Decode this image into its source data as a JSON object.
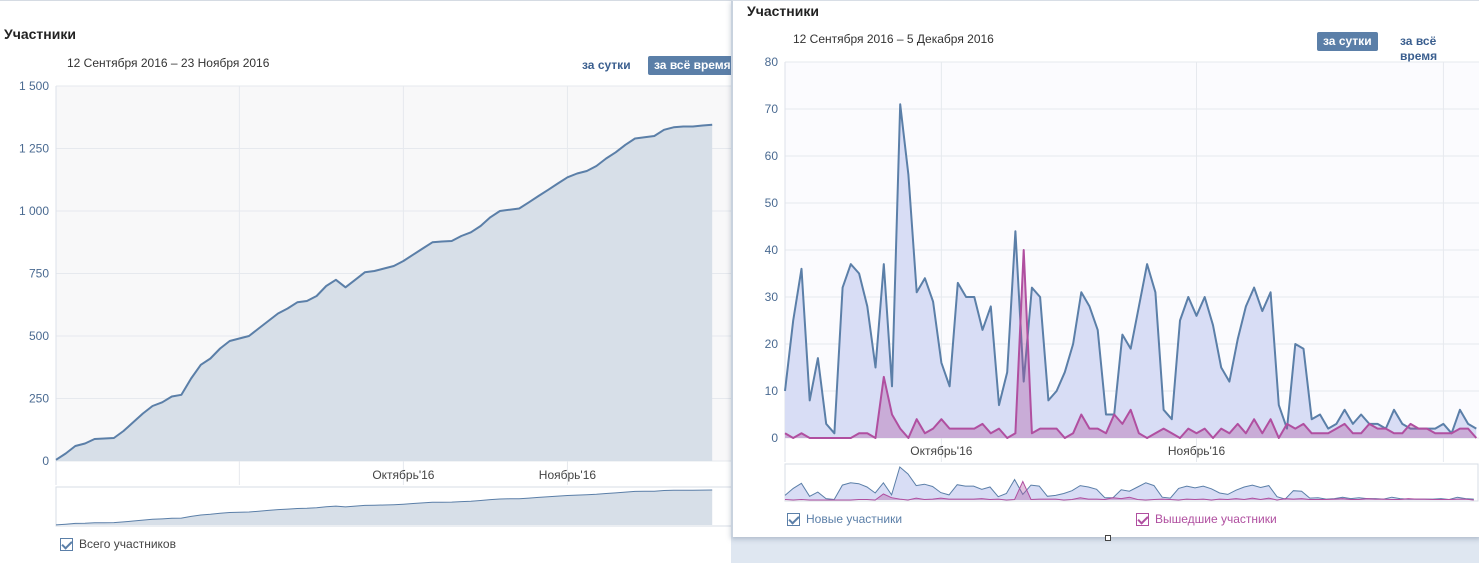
{
  "left_panel": {
    "title": "Участники",
    "date_range": "12 Сентября 2016 – 23 Ноября 2016",
    "buttons": {
      "daily": "за сутки",
      "all_time": "за всё время"
    },
    "legend": [
      {
        "label": "Всего участников",
        "checked": true
      }
    ]
  },
  "right_panel": {
    "title": "Участники",
    "date_range": "12 Сентября 2016 – 5 Декабря 2016",
    "buttons": {
      "daily": "за сутки",
      "all_time": "за всё время"
    },
    "legend": [
      {
        "label": "Новые участники",
        "checked": true
      },
      {
        "label": "Вышедшие участники",
        "checked": true
      }
    ]
  },
  "colors": {
    "series_blue": "#5b7fa8",
    "area_blue": "#d7dfe8",
    "area_lavender": "#d8ddf5",
    "series_pink": "#b04fa0",
    "button_active_bg": "#5b7fa8"
  },
  "chart_data": [
    {
      "type": "area",
      "title": "Участники",
      "ylim": [
        0,
        1500
      ],
      "yticks": [
        0,
        250,
        500,
        750,
        1000,
        1250,
        1500
      ],
      "ytick_labels": [
        "0",
        "250",
        "500",
        "750",
        "1 000",
        "1 250",
        "1 500"
      ],
      "xticks": [
        {
          "day": 19,
          "label": ""
        },
        {
          "day": 36,
          "label": "Октябрь'16"
        },
        {
          "day": 53,
          "label": "Ноябрь'16"
        }
      ],
      "grid": true,
      "series": [
        {
          "legend_label": "Всего участников",
          "x_start": "2016-09-12",
          "values": [
            5,
            30,
            60,
            70,
            88,
            90,
            92,
            120,
            155,
            190,
            220,
            235,
            258,
            265,
            330,
            385,
            410,
            450,
            480,
            490,
            500,
            530,
            560,
            590,
            610,
            635,
            640,
            660,
            700,
            725,
            695,
            725,
            755,
            760,
            770,
            780,
            800,
            825,
            850,
            875,
            878,
            880,
            900,
            915,
            940,
            975,
            1000,
            1005,
            1010,
            1035,
            1060,
            1085,
            1110,
            1135,
            1150,
            1160,
            1180,
            1210,
            1235,
            1265,
            1290,
            1295,
            1300,
            1325,
            1335,
            1338,
            1338,
            1342,
            1345
          ]
        }
      ]
    },
    {
      "type": "area",
      "title": "Участники",
      "ylim": [
        0,
        80
      ],
      "yticks": [
        0,
        10,
        20,
        30,
        40,
        50,
        60,
        70,
        80
      ],
      "ytick_labels": [
        "0",
        "10",
        "20",
        "30",
        "40",
        "50",
        "60",
        "70",
        "80"
      ],
      "xticks": [
        {
          "day": 19,
          "label": "Октябрь'16"
        },
        {
          "day": 50,
          "label": "Ноябрь'16"
        },
        {
          "day": 80,
          "label": ""
        }
      ],
      "grid": true,
      "series": [
        {
          "legend_label": "Новые участники",
          "x_start": "2016-09-12",
          "values": [
            10,
            25,
            36,
            8,
            17,
            3,
            1,
            32,
            37,
            35,
            28,
            15,
            37,
            11,
            71,
            56,
            31,
            34,
            29,
            16,
            11,
            33,
            30,
            30,
            23,
            28,
            7,
            14,
            44,
            12,
            32,
            30,
            8,
            10,
            14,
            20,
            31,
            28,
            23,
            5,
            5,
            22,
            19,
            28,
            37,
            31,
            6,
            4,
            25,
            30,
            26,
            30,
            24,
            15,
            12,
            21,
            28,
            32,
            27,
            31,
            7,
            2,
            20,
            19,
            4,
            5,
            2,
            3,
            6,
            3,
            5,
            3,
            3,
            2,
            6,
            3,
            2,
            2,
            2,
            2,
            3,
            1,
            6,
            3,
            2
          ]
        },
        {
          "legend_label": "Вышедшие участники",
          "x_start": "2016-09-12",
          "values": [
            1,
            0,
            1,
            0,
            0,
            0,
            0,
            0,
            0,
            1,
            1,
            0,
            13,
            5,
            2,
            0,
            4,
            1,
            2,
            4,
            2,
            2,
            2,
            2,
            3,
            1,
            2,
            0,
            1,
            40,
            1,
            2,
            2,
            2,
            0,
            1,
            5,
            2,
            2,
            1,
            5,
            3,
            6,
            1,
            0,
            1,
            2,
            1,
            0,
            2,
            1,
            2,
            0,
            2,
            1,
            3,
            1,
            4,
            1,
            4,
            0,
            3,
            2,
            3,
            1,
            1,
            1,
            2,
            3,
            1,
            1,
            3,
            2,
            2,
            1,
            1,
            3,
            2,
            2,
            1,
            1,
            1,
            2,
            2,
            0
          ]
        }
      ]
    }
  ]
}
